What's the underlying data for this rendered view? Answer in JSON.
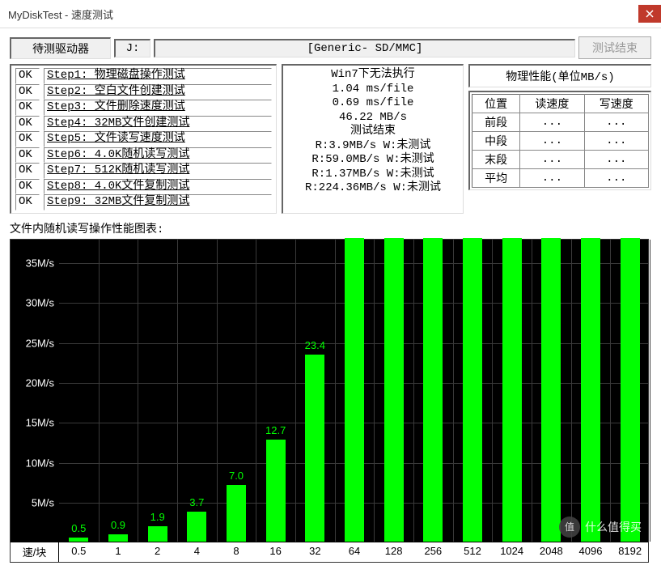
{
  "window": {
    "title": "MyDiskTest - 速度测试"
  },
  "top": {
    "drive_label": "待测驱动器",
    "drive_letter": "J:",
    "device": "[Generic- SD/MMC]",
    "btn_end": "测试结束"
  },
  "steps": [
    {
      "ok": "OK",
      "text": "Step1: 物理磁盘操作测试"
    },
    {
      "ok": "OK",
      "text": "Step2: 空白文件创建测试"
    },
    {
      "ok": "OK",
      "text": "Step3: 文件删除速度测试"
    },
    {
      "ok": "OK",
      "text": "Step4: 32MB文件创建测试"
    },
    {
      "ok": "OK",
      "text": "Step5: 文件读写速度测试"
    },
    {
      "ok": "OK",
      "text": "Step6: 4.0K随机读写测试"
    },
    {
      "ok": "OK",
      "text": "Step7: 512K随机读写测试"
    },
    {
      "ok": "OK",
      "text": "Step8: 4.0K文件复制测试"
    },
    {
      "ok": "OK",
      "text": "Step9: 32MB文件复制测试"
    }
  ],
  "results": [
    "Win7下无法执行",
    "1.04 ms/file",
    "0.69 ms/file",
    "46.22 MB/s",
    "测试结束",
    "R:3.9MB/s W:未测试",
    "R:59.0MB/s W:未测试",
    "R:1.37MB/s W:未测试",
    "R:224.36MB/s W:未测试"
  ],
  "perf": {
    "title": "物理性能(单位MB/s)",
    "cols": [
      "位置",
      "读速度",
      "写速度"
    ],
    "rows": [
      [
        "前段",
        "...",
        "..."
      ],
      [
        "中段",
        "...",
        "..."
      ],
      [
        "末段",
        "...",
        "..."
      ],
      [
        "平均",
        "...",
        "..."
      ]
    ]
  },
  "chart": {
    "title": "文件内随机读写操作性能图表:",
    "y_labels": [
      "35M/s",
      "30M/s",
      "25M/s",
      "20M/s",
      "15M/s",
      "10M/s",
      "5M/s"
    ],
    "y_values": [
      35,
      30,
      25,
      20,
      15,
      10,
      5
    ],
    "y_max": 38,
    "x_corner": "速/块",
    "x_labels": [
      "0.5",
      "1",
      "2",
      "4",
      "8",
      "16",
      "32",
      "64",
      "128",
      "256",
      "512",
      "1024",
      "2048",
      "4096",
      "8192"
    ],
    "bars": [
      0.5,
      0.9,
      1.9,
      3.7,
      7.0,
      12.7,
      23.4,
      38,
      38,
      38,
      38,
      38,
      38,
      38,
      38
    ],
    "bar_labels": [
      "0.5",
      "0.9",
      "1.9",
      "3.7",
      "7.0",
      "12.7",
      "23.4",
      "",
      "",
      "",
      "",
      "",
      "",
      "",
      ""
    ],
    "bar_color": "#00ff00",
    "bg_color": "#000000",
    "grid_color": "#3a3a3a"
  },
  "watermark": "什么值得买"
}
